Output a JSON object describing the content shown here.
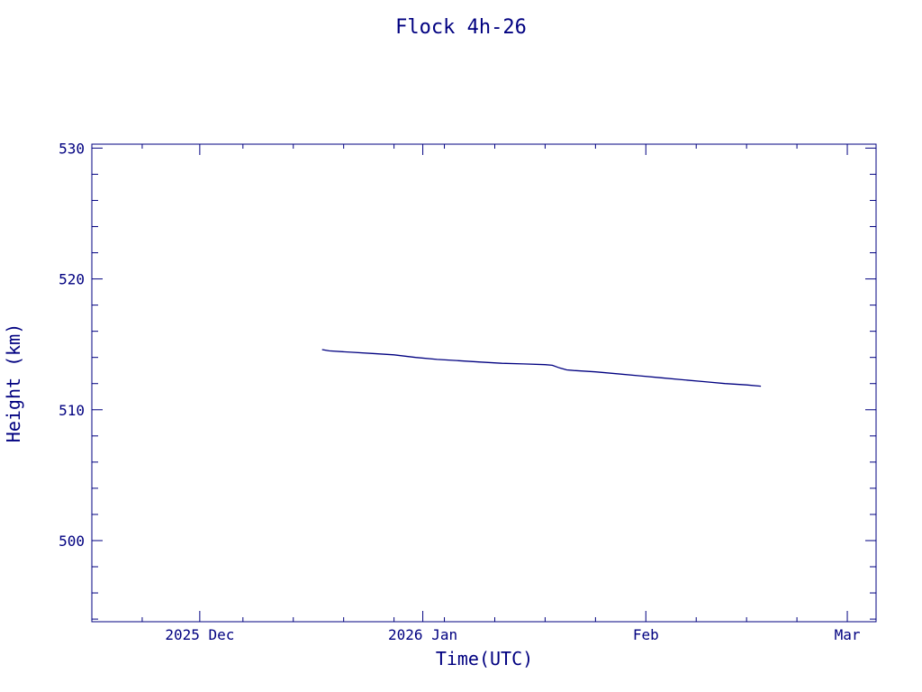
{
  "colors": {
    "ink": "#000080",
    "background": "#ffffff"
  },
  "chart_data": {
    "type": "line",
    "title": "Flock 4h-26",
    "xlabel": "Time(UTC)",
    "ylabel": "Height (km)",
    "xlim": [
      "2025-11-16",
      "2026-03-05"
    ],
    "ylim": [
      493.8,
      530.3
    ],
    "y_ticks": [
      500,
      510,
      520,
      530
    ],
    "x_ticks": [
      {
        "date": "2025-12-01",
        "label": "2025 Dec"
      },
      {
        "date": "2026-01-01",
        "label": "2026 Jan"
      },
      {
        "date": "2026-02-01",
        "label": "Feb"
      },
      {
        "date": "2026-03-01",
        "label": "Mar"
      }
    ],
    "grid": false,
    "series": [
      {
        "x": [
          "2025-12-18",
          "2025-12-19",
          "2025-12-22",
          "2025-12-25",
          "2025-12-28",
          "2025-12-31",
          "2026-01-03",
          "2026-01-06",
          "2026-01-09",
          "2026-01-12",
          "2026-01-15",
          "2026-01-18",
          "2026-01-19",
          "2026-01-20",
          "2026-01-21",
          "2026-01-22",
          "2026-01-25",
          "2026-01-28",
          "2026-01-31",
          "2026-02-03",
          "2026-02-06",
          "2026-02-09",
          "2026-02-12",
          "2026-02-15",
          "2026-02-17"
        ],
        "y": [
          514.6,
          514.5,
          514.4,
          514.3,
          514.2,
          514.0,
          513.85,
          513.75,
          513.65,
          513.55,
          513.5,
          513.45,
          513.4,
          513.2,
          513.05,
          513.0,
          512.9,
          512.75,
          512.6,
          512.45,
          512.3,
          512.15,
          512.0,
          511.9,
          511.8
        ]
      }
    ]
  }
}
